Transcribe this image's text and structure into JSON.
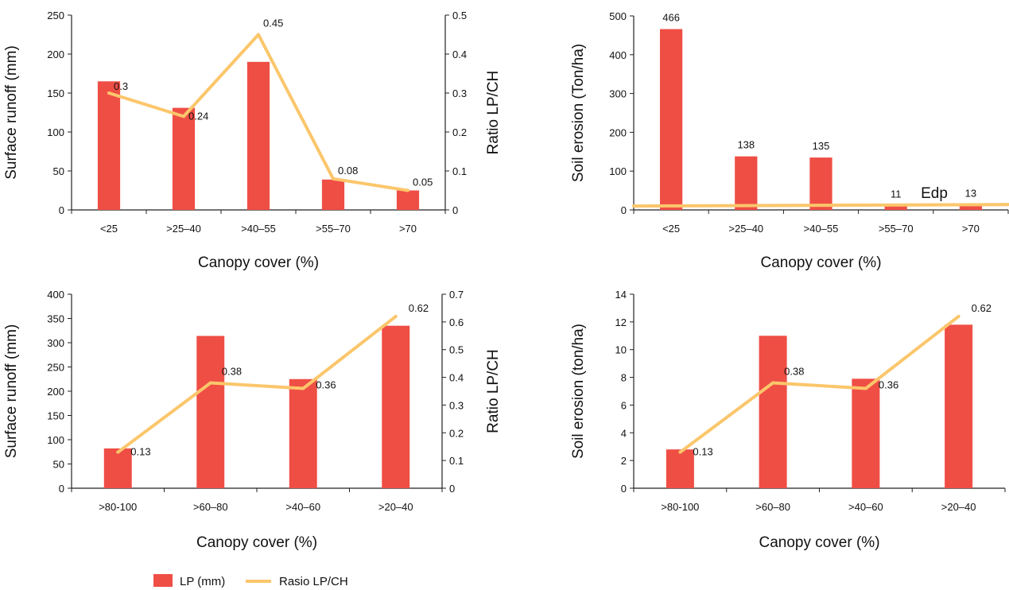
{
  "chart_data": [
    {
      "type": "bar+line",
      "categories": [
        "<25",
        ">25–40",
        ">40–55",
        ">55–70",
        ">70"
      ],
      "xlabel": "Canopy cover (%)",
      "ylabel": "Surface runoff (mm)",
      "y2label": "Ratio LP/CH",
      "ylim": [
        0,
        250
      ],
      "yticks": [
        0,
        50,
        100,
        150,
        200,
        250
      ],
      "y2lim": [
        0,
        0.5
      ],
      "y2ticks": [
        0,
        0.1,
        0.2,
        0.3,
        0.4,
        0.5
      ],
      "series": [
        {
          "name": "LP (mm)",
          "type": "bar",
          "axis": "left",
          "values": [
            165,
            131,
            190,
            39,
            25
          ]
        },
        {
          "name": "Rasio LP/CH",
          "type": "line",
          "axis": "right",
          "values": [
            0.3,
            0.24,
            0.45,
            0.08,
            0.05
          ],
          "labels": [
            "0.3",
            "0.24",
            "0.45",
            "0.08",
            "0.05"
          ]
        }
      ]
    },
    {
      "type": "bar+line",
      "categories": [
        "<25",
        ">25–40",
        ">40–55",
        ">55–70",
        ">70"
      ],
      "xlabel": "Canopy cover (%)",
      "ylabel": "Soil erosion (Ton/ha)",
      "ylim": [
        0,
        500
      ],
      "yticks": [
        0,
        100,
        200,
        300,
        400,
        500
      ],
      "series": [
        {
          "name": "",
          "type": "bar",
          "axis": "left",
          "values": [
            466,
            138,
            135,
            11,
            13
          ],
          "labels": [
            "466",
            "138",
            "135",
            "11",
            "13"
          ]
        },
        {
          "name": "Edp",
          "type": "line",
          "axis": "left",
          "x": [
            0,
            5
          ],
          "values": [
            10,
            14
          ]
        }
      ]
    },
    {
      "type": "bar+line",
      "categories": [
        ">80-100",
        ">60–80",
        ">40–60",
        ">20–40"
      ],
      "xlabel": "Canopy cover (%)",
      "ylabel": "Surface runoff (mm)",
      "y2label": "Ratio LP/CH",
      "ylim": [
        0,
        400
      ],
      "yticks": [
        0,
        50,
        100,
        150,
        200,
        250,
        300,
        350,
        400
      ],
      "y2lim": [
        0,
        0.7
      ],
      "y2ticks": [
        0,
        0.1,
        0.2,
        0.3,
        0.4,
        0.5,
        0.6,
        0.7
      ],
      "series": [
        {
          "name": "LP (mm)",
          "type": "bar",
          "axis": "left",
          "values": [
            82,
            314,
            225,
            335
          ]
        },
        {
          "name": "Rasio LP/CH",
          "type": "line",
          "axis": "right",
          "values": [
            0.13,
            0.38,
            0.36,
            0.62
          ],
          "labels": [
            "0.13",
            "0.38",
            "0.36",
            "0.62"
          ]
        }
      ]
    },
    {
      "type": "bar+line",
      "categories": [
        ">80-100",
        ">60–80",
        ">40–60",
        ">20–40"
      ],
      "xlabel": "Canopy cover (%)",
      "ylabel": "Soil erosion (ton/ha)",
      "ylim": [
        0,
        14
      ],
      "yticks": [
        0,
        2,
        4,
        6,
        8,
        10,
        12,
        14
      ],
      "y2lim": [
        0,
        0.7
      ],
      "series": [
        {
          "name": "",
          "type": "bar",
          "axis": "left",
          "values": [
            2.8,
            11,
            7.9,
            11.8
          ]
        },
        {
          "name": "",
          "type": "line",
          "axis": "right",
          "values": [
            0.13,
            0.38,
            0.36,
            0.62
          ],
          "labels": [
            "0.13",
            "0.38",
            "0.36",
            "0.62"
          ]
        }
      ]
    }
  ],
  "legend": {
    "placement": "bottom",
    "items": [
      {
        "label": "LP (mm)",
        "kind": "bar"
      },
      {
        "label": "Rasio LP/CH",
        "kind": "line"
      }
    ]
  },
  "colors": {
    "bar": "#ef4e45",
    "line": "#fbc66b",
    "axis": "#222222"
  }
}
